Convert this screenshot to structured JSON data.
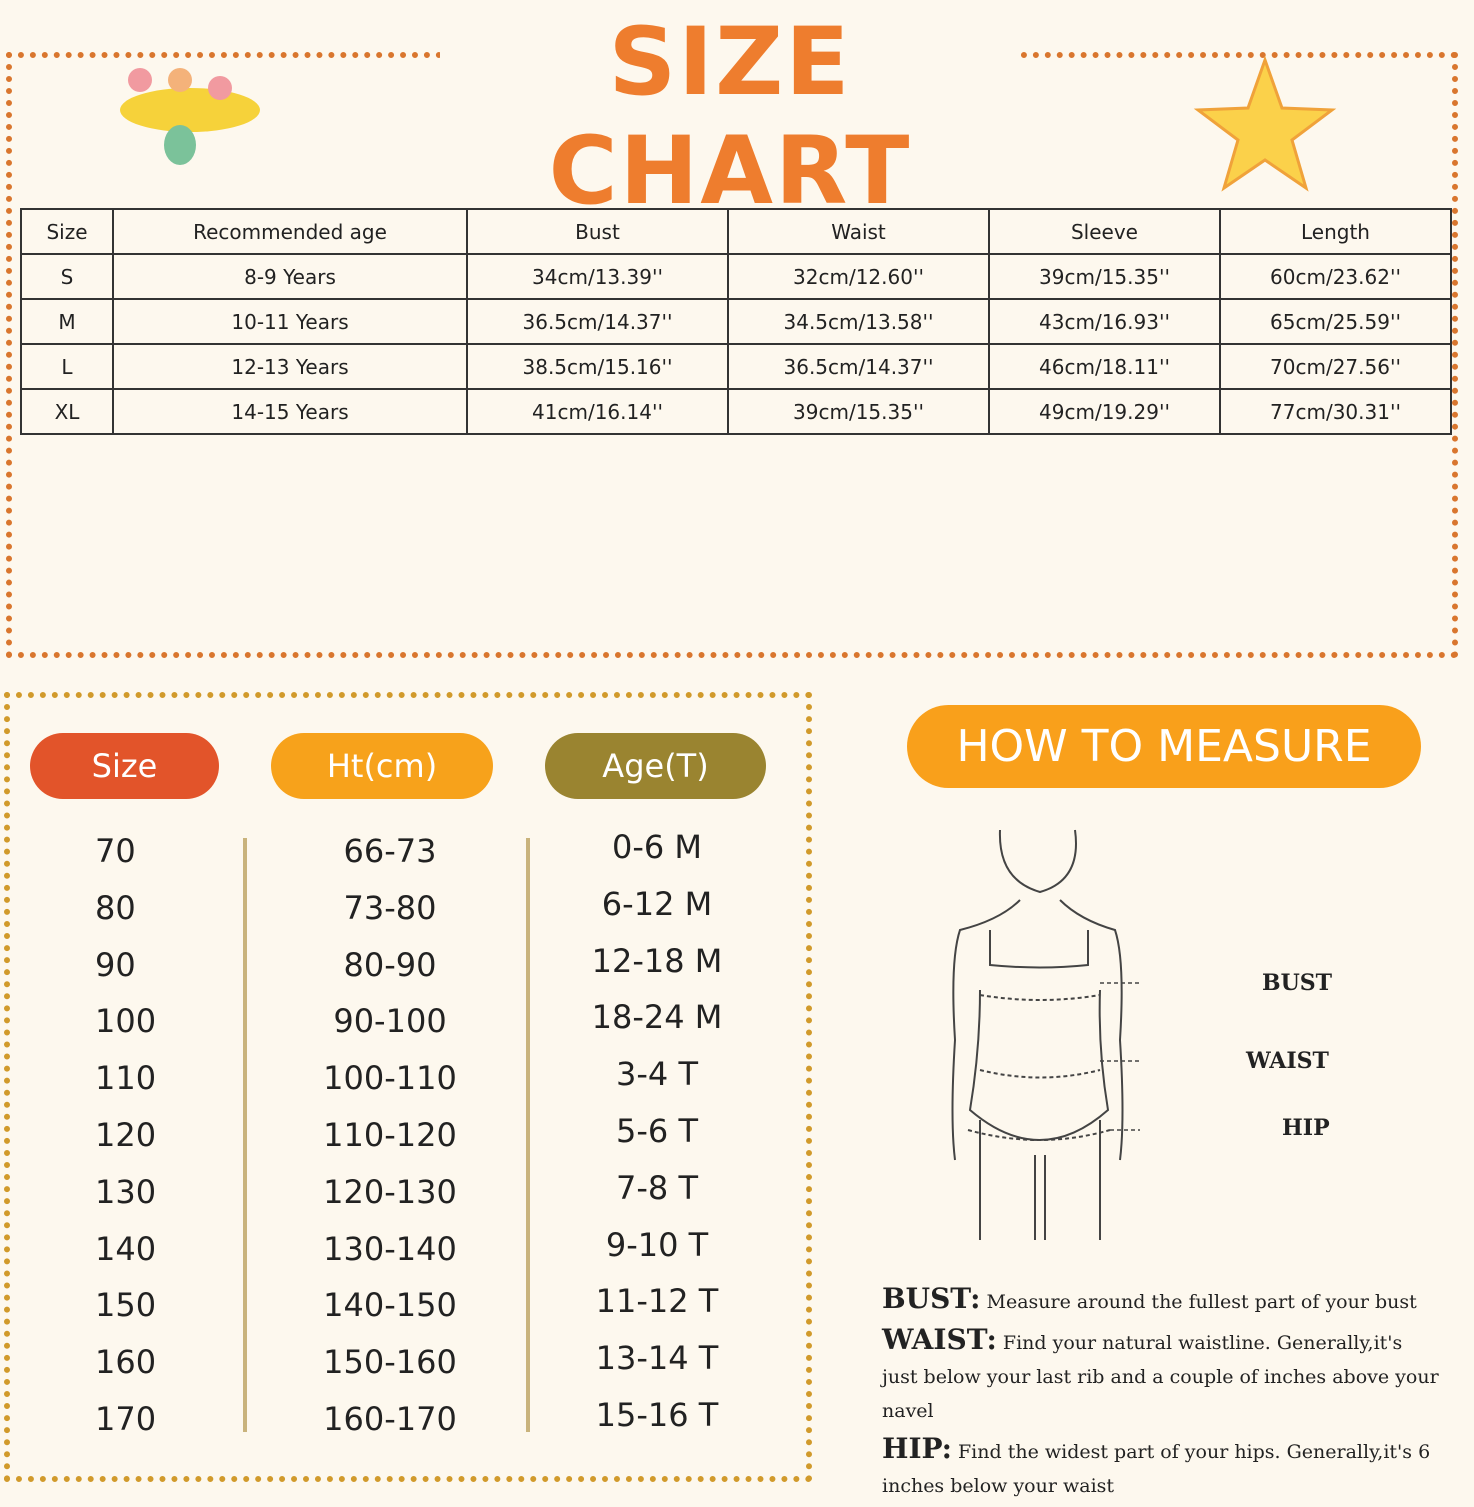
{
  "header": {
    "title": "SIZE CHART"
  },
  "table": {
    "headers": [
      "Size",
      "Recommended age",
      "Bust",
      "Waist",
      "Sleeve",
      "Length"
    ],
    "rows": [
      [
        "S",
        "8-9 Years",
        "34cm/13.39''",
        "32cm/12.60''",
        "39cm/15.35''",
        "60cm/23.62''"
      ],
      [
        "M",
        "10-11 Years",
        "36.5cm/14.37''",
        "34.5cm/13.58''",
        "43cm/16.93''",
        "65cm/25.59''"
      ],
      [
        "L",
        "12-13 Years",
        "38.5cm/15.16''",
        "36.5cm/14.37''",
        "46cm/18.11''",
        "70cm/27.56''"
      ],
      [
        "XL",
        "14-15 Years",
        "41cm/16.14''",
        "39cm/15.35''",
        "49cm/19.29''",
        "77cm/30.31''"
      ]
    ]
  },
  "size_table": {
    "headers": [
      "Size",
      "Ht(cm)",
      "Age(T)"
    ],
    "rows": [
      [
        "70",
        "66-73",
        "0-6 M"
      ],
      [
        "80",
        "73-80",
        "6-12 M"
      ],
      [
        "90",
        "80-90",
        "12-18 M"
      ],
      [
        "100",
        "90-100",
        "18-24 M"
      ],
      [
        "110",
        "100-110",
        "3-4 T"
      ],
      [
        "120",
        "110-120",
        "5-6 T"
      ],
      [
        "130",
        "120-130",
        "7-8 T"
      ],
      [
        "140",
        "130-140",
        "9-10 T"
      ],
      [
        "150",
        "140-150",
        "11-12 T"
      ],
      [
        "160",
        "150-160",
        "13-14 T"
      ],
      [
        "170",
        "160-170",
        "15-16 T"
      ]
    ]
  },
  "measure": {
    "title": "HOW TO MEASURE",
    "labels": [
      "BUST",
      "WAIST",
      "HIP"
    ],
    "notes": [
      {
        "term": "BUST:",
        "text": "Measure around the fullest part of your bust"
      },
      {
        "term": "WAIST:",
        "text": "Find your natural waistline. Generally,it's just below your last rib and a couple of inches above your navel"
      },
      {
        "term": "HIP:",
        "text": "Find the widest part of your hips. Generally,it's 6 inches below your waist"
      }
    ]
  }
}
